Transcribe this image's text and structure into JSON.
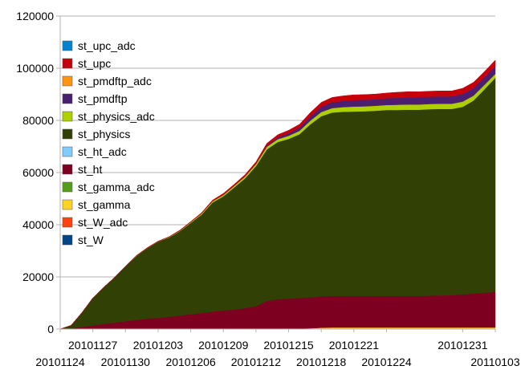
{
  "chart_data": {
    "type": "area",
    "stacked": true,
    "title": "",
    "xlabel": "",
    "ylabel": "",
    "ylim": [
      0,
      120000
    ],
    "yticks": [
      0,
      20000,
      40000,
      60000,
      80000,
      100000,
      120000
    ],
    "ytick_labels": [
      "0",
      "20000",
      "40000",
      "60000",
      "80000",
      "100000",
      "120000"
    ],
    "xtick_labels": [
      "20101124",
      "20101127",
      "20101130",
      "20101203",
      "20101206",
      "20101209",
      "20101212",
      "20101215",
      "20101218",
      "20101221",
      "20101224",
      "20101231",
      "20110103"
    ],
    "grid": "horizontal",
    "legend_position": "left",
    "x": [
      "20101124",
      "20101125",
      "20101126",
      "20101127",
      "20101128",
      "20101129",
      "20101130",
      "20101201",
      "20101202",
      "20101203",
      "20101204",
      "20101205",
      "20101206",
      "20101207",
      "20101208",
      "20101209",
      "20101210",
      "20101211",
      "20101212",
      "20101213",
      "20101214",
      "20101215",
      "20101216",
      "20101217",
      "20101218",
      "20101219",
      "20101220",
      "20101221",
      "20101222",
      "20101223",
      "20101224",
      "20101225",
      "20101226",
      "20101227",
      "20101228",
      "20101229",
      "20101230",
      "20101231",
      "20110101",
      "20110102",
      "20110103"
    ],
    "series": [
      {
        "name": "st_W",
        "color": "#004586",
        "values": [
          0,
          0,
          0,
          0,
          0,
          0,
          0,
          0,
          0,
          0,
          0,
          0,
          0,
          0,
          0,
          0,
          0,
          0,
          0,
          0,
          0,
          0,
          0,
          0,
          0,
          0,
          0,
          0,
          0,
          0,
          0,
          0,
          0,
          0,
          0,
          0,
          0,
          0,
          0,
          0,
          0
        ]
      },
      {
        "name": "st_W_adc",
        "color": "#ff420e",
        "values": [
          0,
          0,
          0,
          0,
          0,
          0,
          0,
          0,
          0,
          0,
          0,
          0,
          0,
          0,
          0,
          0,
          0,
          0,
          0,
          0,
          0,
          0,
          0,
          0,
          0,
          0,
          0,
          0,
          0,
          0,
          0,
          0,
          0,
          0,
          0,
          0,
          0,
          0,
          0,
          0,
          0
        ]
      },
      {
        "name": "st_gamma",
        "color": "#ffd320",
        "values": [
          0,
          0,
          0,
          0,
          0,
          0,
          0,
          0,
          0,
          0,
          0,
          0,
          0,
          0,
          0,
          0,
          0,
          0,
          0,
          0,
          0,
          200,
          200,
          300,
          500,
          600,
          600,
          600,
          600,
          600,
          600,
          600,
          600,
          600,
          600,
          600,
          600,
          600,
          600,
          600,
          600
        ]
      },
      {
        "name": "st_gamma_adc",
        "color": "#579d1c",
        "values": [
          0,
          0,
          0,
          0,
          0,
          0,
          0,
          0,
          0,
          0,
          0,
          0,
          0,
          0,
          0,
          0,
          0,
          0,
          0,
          0,
          0,
          0,
          0,
          0,
          0,
          0,
          0,
          0,
          0,
          0,
          0,
          0,
          0,
          0,
          0,
          0,
          0,
          0,
          0,
          0,
          0
        ]
      },
      {
        "name": "st_ht",
        "color": "#7e0021",
        "values": [
          0,
          200,
          800,
          1400,
          2000,
          2500,
          3000,
          3500,
          4000,
          4300,
          4700,
          5200,
          5700,
          6200,
          6700,
          7100,
          7500,
          8000,
          8800,
          10800,
          11400,
          11500,
          11700,
          11800,
          12100,
          12100,
          12100,
          12100,
          12100,
          12100,
          12100,
          12100,
          12100,
          12100,
          12200,
          12300,
          12400,
          12700,
          13000,
          13300,
          13700
        ]
      },
      {
        "name": "st_ht_adc",
        "color": "#83caff",
        "values": [
          0,
          0,
          0,
          0,
          0,
          0,
          0,
          0,
          0,
          0,
          0,
          0,
          0,
          0,
          0,
          0,
          0,
          0,
          0,
          0,
          0,
          0,
          0,
          0,
          0,
          0,
          0,
          0,
          0,
          0,
          0,
          0,
          0,
          0,
          0,
          0,
          0,
          0,
          0,
          0,
          0
        ]
      },
      {
        "name": "st_physics",
        "color": "#314004",
        "values": [
          0,
          1200,
          5500,
          10500,
          14000,
          17300,
          21000,
          24500,
          27000,
          29200,
          30400,
          32300,
          35000,
          37700,
          41800,
          43800,
          46800,
          49800,
          53700,
          58100,
          60300,
          61200,
          62800,
          66400,
          69000,
          70300,
          70600,
          70700,
          70800,
          71000,
          71300,
          71300,
          71400,
          71400,
          71500,
          71500,
          71400,
          71900,
          74000,
          78000,
          82000
        ]
      },
      {
        "name": "st_physics_adc",
        "color": "#aecf00",
        "values": [
          0,
          0,
          0,
          0,
          0,
          0,
          0,
          100,
          100,
          100,
          200,
          200,
          300,
          400,
          500,
          500,
          600,
          700,
          800,
          1000,
          1100,
          1200,
          1300,
          1400,
          1600,
          1700,
          1800,
          1900,
          1900,
          1900,
          1900,
          2000,
          2000,
          2000,
          2000,
          2000,
          2000,
          2000,
          1900,
          1700,
          1500
        ]
      },
      {
        "name": "st_pmdftp",
        "color": "#4b1f6f",
        "values": [
          0,
          0,
          0,
          0,
          0,
          0,
          0,
          0,
          0,
          0,
          0,
          0,
          0,
          0,
          0,
          100,
          100,
          100,
          100,
          400,
          700,
          1000,
          1200,
          1600,
          2000,
          2300,
          2400,
          2500,
          2500,
          2500,
          2600,
          2700,
          2800,
          2800,
          2800,
          2800,
          2800,
          2900,
          2900,
          2900,
          3000
        ]
      },
      {
        "name": "st_pmdftp_adc",
        "color": "#ff950e",
        "values": [
          0,
          0,
          0,
          0,
          0,
          0,
          0,
          0,
          0,
          0,
          0,
          0,
          0,
          0,
          0,
          0,
          0,
          0,
          0,
          0,
          0,
          0,
          0,
          0,
          0,
          0,
          0,
          0,
          0,
          0,
          0,
          0,
          0,
          0,
          0,
          0,
          0,
          0,
          0,
          0,
          0
        ]
      },
      {
        "name": "st_upc",
        "color": "#c5000b",
        "values": [
          0,
          0,
          0,
          0,
          0,
          0,
          0,
          100,
          100,
          100,
          100,
          200,
          200,
          300,
          400,
          500,
          500,
          600,
          700,
          900,
          1000,
          1100,
          1300,
          1500,
          1700,
          1800,
          1900,
          2000,
          2000,
          2000,
          2000,
          2100,
          2100,
          2100,
          2100,
          2100,
          2100,
          2200,
          2200,
          2200,
          2300
        ]
      },
      {
        "name": "st_upc_adc",
        "color": "#0084d1",
        "values": [
          0,
          0,
          0,
          0,
          0,
          0,
          0,
          0,
          0,
          0,
          0,
          0,
          0,
          0,
          0,
          0,
          0,
          0,
          0,
          0,
          0,
          0,
          0,
          0,
          0,
          0,
          0,
          0,
          0,
          0,
          0,
          0,
          0,
          0,
          0,
          0,
          0,
          0,
          0,
          0,
          0
        ]
      }
    ]
  }
}
